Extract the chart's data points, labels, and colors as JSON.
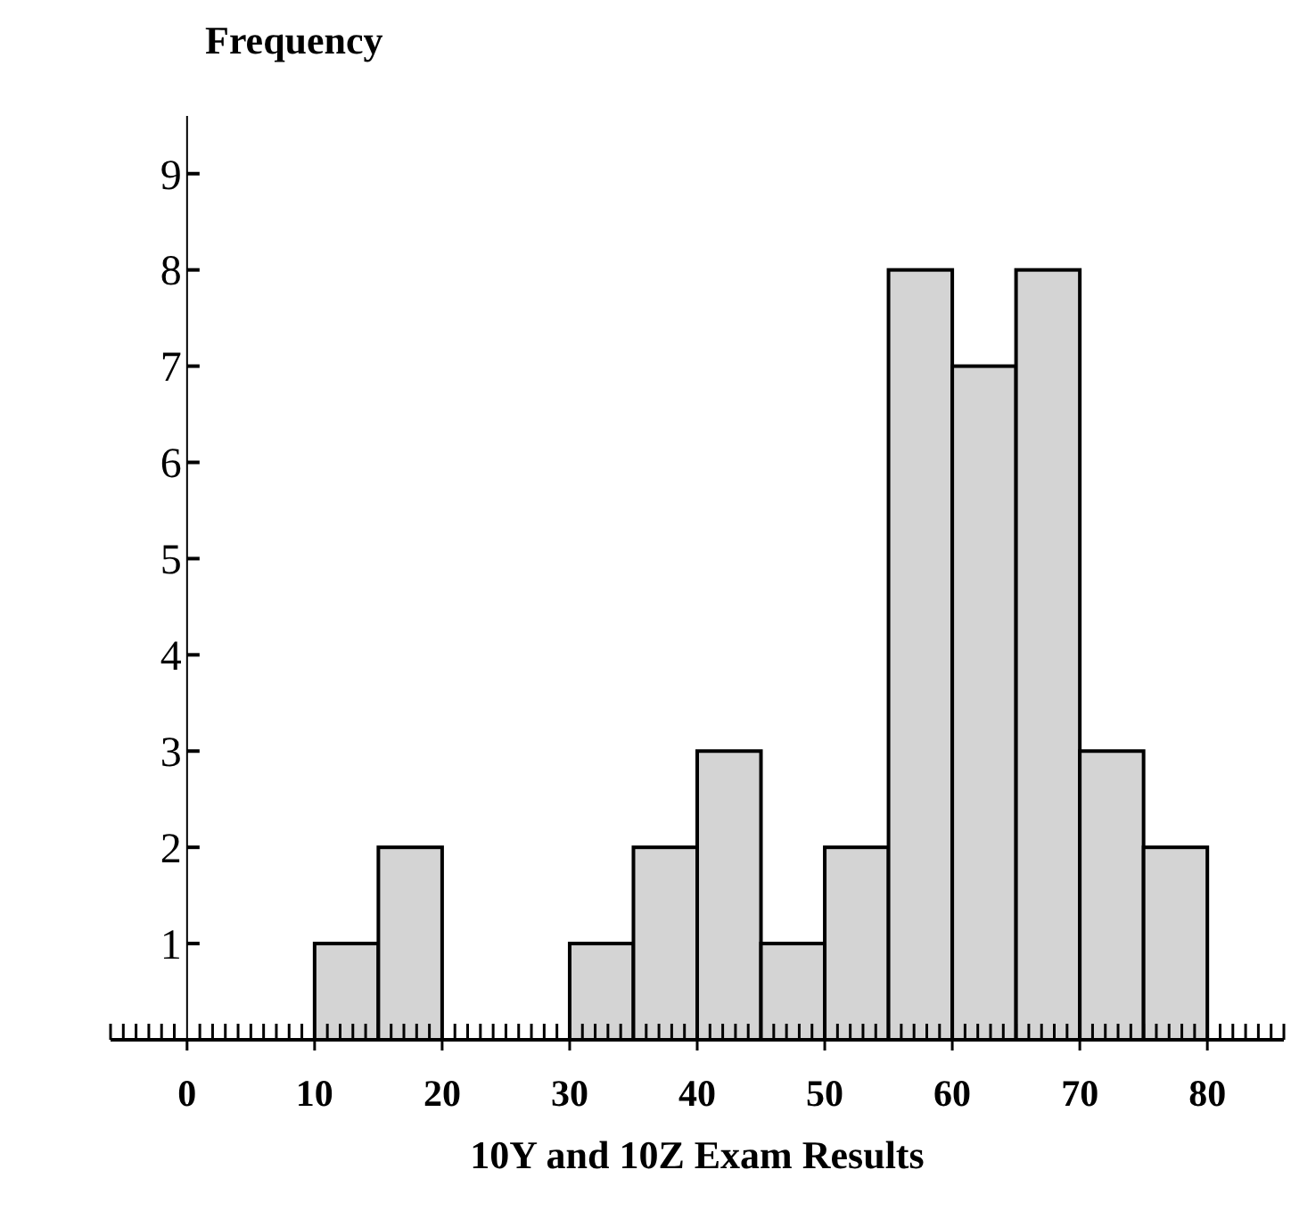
{
  "chart_data": {
    "type": "histogram",
    "xlabel": "10Y and 10Z Exam Results",
    "ylabel": "Frequency",
    "bins": [
      10,
      15,
      20,
      25,
      30,
      35,
      40,
      45,
      50,
      55,
      60,
      65,
      70,
      75,
      80
    ],
    "values": [
      1,
      2,
      0,
      0,
      1,
      2,
      3,
      1,
      2,
      8,
      7,
      8,
      3,
      2
    ],
    "color": "#d4d4d4",
    "xlim": [
      -6,
      86
    ],
    "ylim": [
      0,
      9.6
    ],
    "yticks": [
      1,
      2,
      3,
      4,
      5,
      6,
      7,
      8,
      9
    ],
    "xticks": [
      {
        "value": -6,
        "label": null
      },
      {
        "value": -5,
        "label": null
      },
      {
        "value": -4,
        "label": null
      },
      {
        "value": -3,
        "label": null
      },
      {
        "value": -2,
        "label": null
      },
      {
        "value": -1,
        "label": null
      },
      0,
      {
        "value": 1,
        "label": null
      },
      {
        "value": 2,
        "label": null
      },
      {
        "value": 3,
        "label": null
      },
      {
        "value": 4,
        "label": null
      },
      {
        "value": 5,
        "label": null
      },
      {
        "value": 6,
        "label": null
      },
      {
        "value": 7,
        "label": null
      },
      {
        "value": 8,
        "label": null
      },
      {
        "value": 9,
        "label": null
      },
      10,
      {
        "value": 11,
        "label": null
      },
      {
        "value": 12,
        "label": null
      },
      {
        "value": 13,
        "label": null
      },
      {
        "value": 14,
        "label": null
      },
      {
        "value": 15,
        "label": null
      },
      {
        "value": 16,
        "label": null
      },
      {
        "value": 17,
        "label": null
      },
      {
        "value": 18,
        "label": null
      },
      {
        "value": 19,
        "label": null
      },
      20,
      {
        "value": 21,
        "label": null
      },
      {
        "value": 22,
        "label": null
      },
      {
        "value": 23,
        "label": null
      },
      {
        "value": 24,
        "label": null
      },
      {
        "value": 25,
        "label": null
      },
      {
        "value": 26,
        "label": null
      },
      {
        "value": 27,
        "label": null
      },
      {
        "value": 28,
        "label": null
      },
      {
        "value": 29,
        "label": null
      },
      30,
      {
        "value": 31,
        "label": null
      },
      {
        "value": 32,
        "label": null
      },
      {
        "value": 33,
        "label": null
      },
      {
        "value": 34,
        "label": null
      },
      {
        "value": 35,
        "label": null
      },
      {
        "value": 36,
        "label": null
      },
      {
        "value": 37,
        "label": null
      },
      {
        "value": 38,
        "label": null
      },
      {
        "value": 39,
        "label": null
      },
      40,
      {
        "value": 41,
        "label": null
      },
      {
        "value": 42,
        "label": null
      },
      {
        "value": 43,
        "label": null
      },
      {
        "value": 44,
        "label": null
      },
      {
        "value": 45,
        "label": null
      },
      {
        "value": 46,
        "label": null
      },
      {
        "value": 47,
        "label": null
      },
      {
        "value": 48,
        "label": null
      },
      {
        "value": 49,
        "label": null
      },
      50,
      {
        "value": 51,
        "label": null
      },
      {
        "value": 52,
        "label": null
      },
      {
        "value": 53,
        "label": null
      },
      {
        "value": 54,
        "label": null
      },
      {
        "value": 55,
        "label": null
      },
      {
        "value": 56,
        "label": null
      },
      {
        "value": 57,
        "label": null
      },
      {
        "value": 58,
        "label": null
      },
      {
        "value": 59,
        "label": null
      },
      60,
      {
        "value": 61,
        "label": null
      },
      {
        "value": 62,
        "label": null
      },
      {
        "value": 63,
        "label": null
      },
      {
        "value": 64,
        "label": null
      },
      {
        "value": 65,
        "label": null
      },
      {
        "value": 66,
        "label": null
      },
      {
        "value": 67,
        "label": null
      },
      {
        "value": 68,
        "label": null
      },
      {
        "value": 69,
        "label": null
      },
      70,
      {
        "value": 71,
        "label": null
      },
      {
        "value": 72,
        "label": null
      },
      {
        "value": 73,
        "label": null
      },
      {
        "value": 74,
        "label": null
      },
      {
        "value": 75,
        "label": null
      },
      {
        "value": 76,
        "label": null
      },
      {
        "value": 77,
        "label": null
      },
      {
        "value": 78,
        "label": null
      },
      {
        "value": 79,
        "label": null
      },
      80,
      {
        "value": 81,
        "label": null
      },
      {
        "value": 82,
        "label": null
      },
      {
        "value": 83,
        "label": null
      },
      {
        "value": 84,
        "label": null
      },
      {
        "value": 85,
        "label": null
      },
      {
        "value": 86,
        "label": null
      }
    ]
  }
}
